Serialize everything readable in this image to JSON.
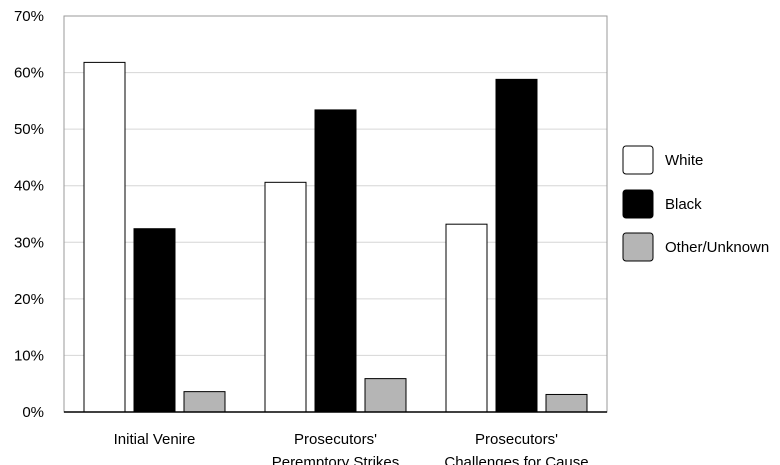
{
  "chart_data": {
    "type": "bar",
    "title": "",
    "xlabel": "",
    "ylabel": "",
    "ylim": [
      0,
      70
    ],
    "yticks": [
      "0%",
      "10%",
      "20%",
      "30%",
      "40%",
      "50%",
      "60%",
      "70%"
    ],
    "grid": true,
    "legend_position": "right",
    "categories": [
      [
        "Initial Venire"
      ],
      [
        "Prosecutors'",
        "Peremptory Strikes"
      ],
      [
        "Prosecutors'",
        "Challenges for Cause"
      ]
    ],
    "series": [
      {
        "name": "White",
        "values": [
          61.8,
          40.6,
          33.2
        ],
        "color": "#ffffff"
      },
      {
        "name": "Black",
        "values": [
          32.4,
          53.4,
          58.8
        ],
        "color": "#000000"
      },
      {
        "name": "Other/Unknown",
        "values": [
          3.6,
          5.9,
          3.1
        ],
        "color": "#b5b5b5"
      }
    ]
  }
}
